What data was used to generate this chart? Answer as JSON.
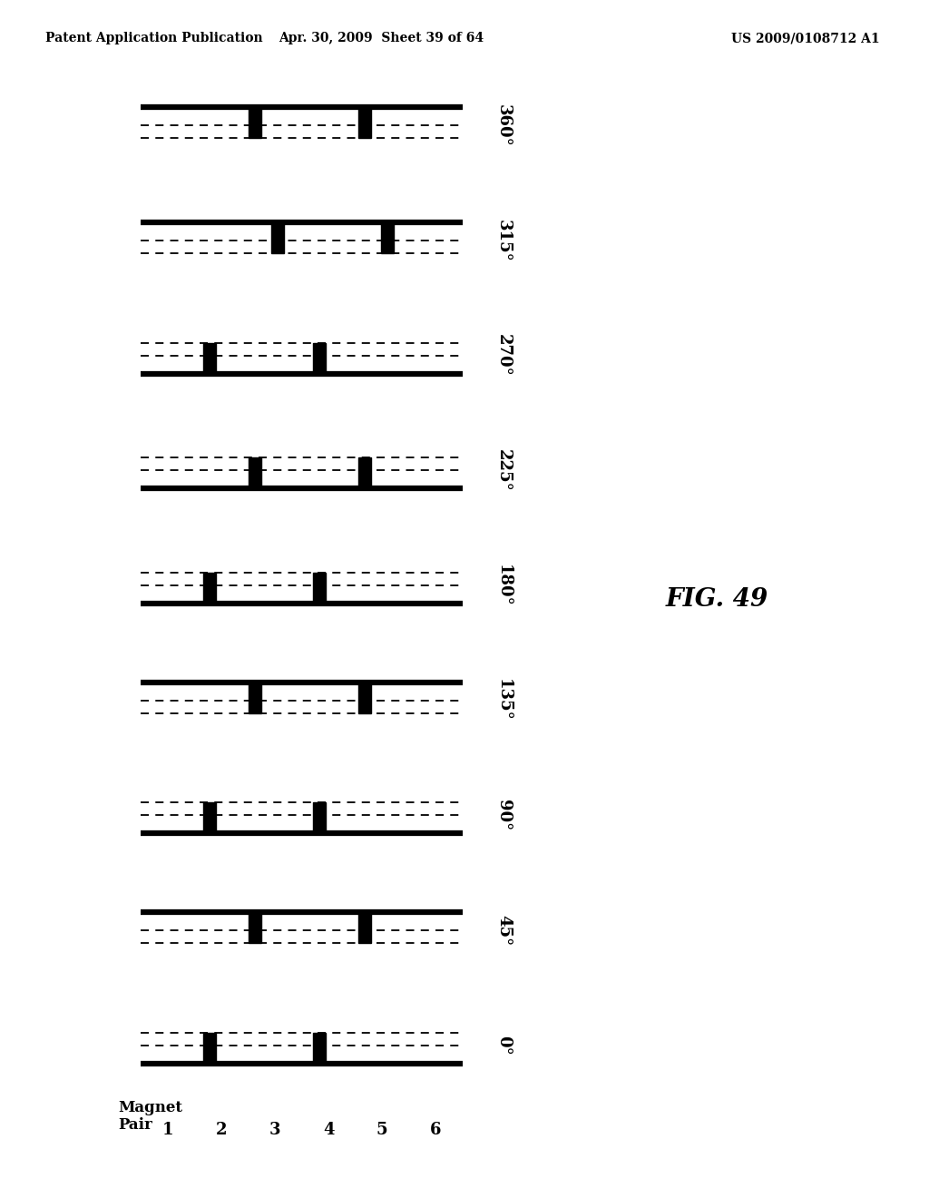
{
  "title": "FIG. 49",
  "header_left": "Patent Application Publication",
  "header_center": "Apr. 30, 2009  Sheet 39 of 64",
  "header_right": "US 2009/0108712 A1",
  "magnet_pair_label": "Magnet\nPair",
  "magnet_pair_numbers": [
    "1",
    "2",
    "3",
    "4",
    "5",
    "6"
  ],
  "background_color": "#ffffff",
  "line_color": "#000000",
  "solid_linewidth": 4.5,
  "dashed_linewidth": 1.3,
  "diagrams": [
    {
      "angle": "360°",
      "solid_top": true,
      "magnets": [
        0.355,
        0.695
      ]
    },
    {
      "angle": "315°",
      "solid_top": true,
      "magnets": [
        0.425,
        0.765
      ]
    },
    {
      "angle": "270°",
      "solid_top": false,
      "magnets": [
        0.215,
        0.555
      ]
    },
    {
      "angle": "225°",
      "solid_top": false,
      "magnets": [
        0.355,
        0.695
      ]
    },
    {
      "angle": "180°",
      "solid_top": false,
      "magnets": [
        0.215,
        0.555
      ]
    },
    {
      "angle": "135°",
      "solid_top": true,
      "magnets": [
        0.355,
        0.695
      ]
    },
    {
      "angle": "90°",
      "solid_top": false,
      "magnets": [
        0.215,
        0.555
      ]
    },
    {
      "angle": "45°",
      "solid_top": true,
      "magnets": [
        0.355,
        0.695
      ]
    },
    {
      "angle": "0°",
      "solid_top": false,
      "magnets": [
        0.215,
        0.555
      ]
    }
  ]
}
